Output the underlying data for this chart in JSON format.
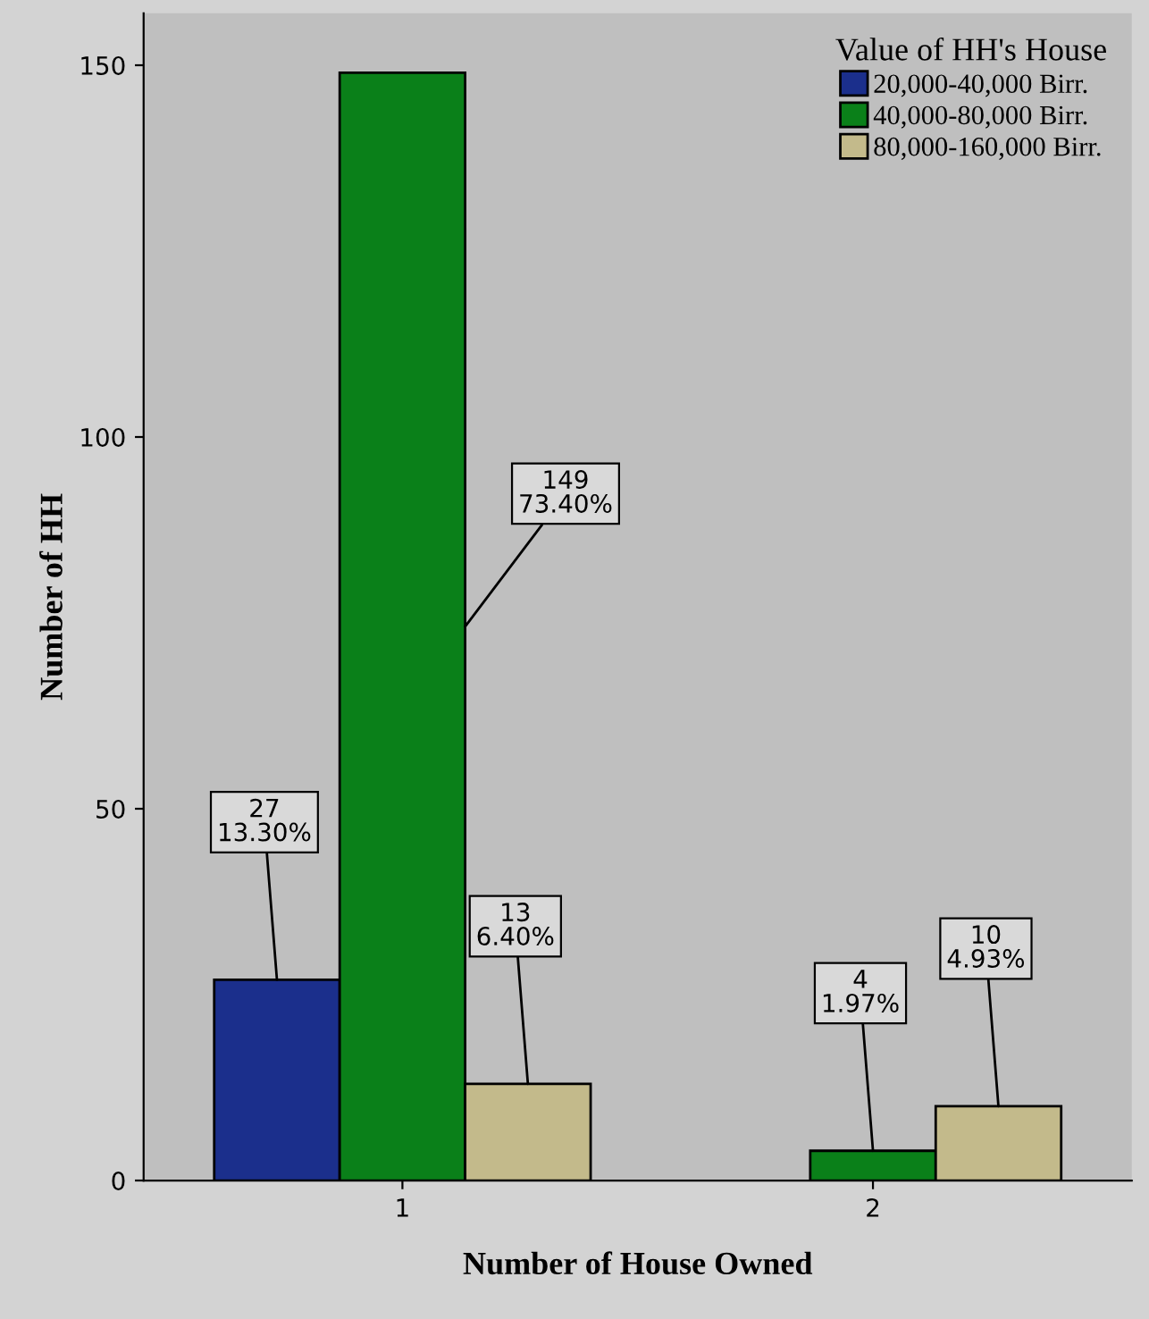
{
  "chart_data": {
    "type": "bar",
    "xlabel": "Number of House Owned",
    "ylabel": "Number of HH",
    "legend_title": "Value of HH's House",
    "legend": "top right",
    "categories": [
      "1",
      "2"
    ],
    "series": [
      {
        "name": "20,000-40,000 Birr.",
        "color": "#1b2f8c",
        "values": [
          27,
          null
        ],
        "value_labels": [
          "27\n13.30%",
          null
        ]
      },
      {
        "name": "40,000-80,000 Birr.",
        "color": "#0a8019",
        "values": [
          149,
          4
        ],
        "value_labels": [
          "149\n73.40%",
          "4\n1.97%"
        ]
      },
      {
        "name": "80,000-160,000 Birr.",
        "color": "#c3ba8b",
        "values": [
          13,
          10
        ],
        "value_labels": [
          "13\n6.40%",
          "10\n4.93%"
        ]
      }
    ],
    "ylim": [
      0,
      157
    ],
    "yticks": [
      0,
      50,
      100,
      150
    ],
    "grid": false
  }
}
